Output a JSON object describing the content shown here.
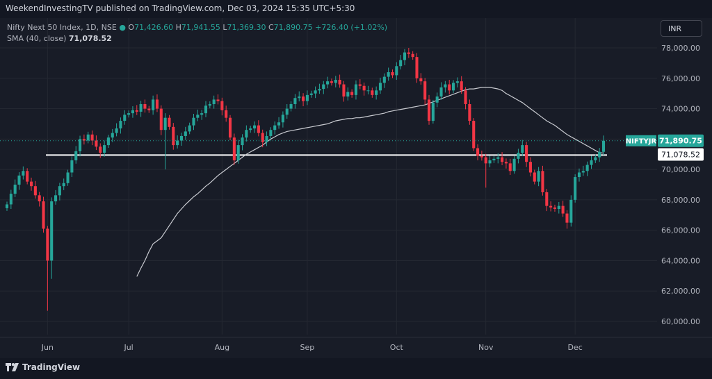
{
  "header": {
    "published_text": "WeekendInvestingTV published on TradingView.com, Dec 03, 2024 15:35 UTC+5:30"
  },
  "legend": {
    "symbol": "Nifty Next 50 Index, 1D, NSE",
    "o_label": "O",
    "o_value": "71,426.60",
    "h_label": "H",
    "h_value": "71,941.55",
    "l_label": "L",
    "l_value": "71,369.30",
    "c_label": "C",
    "c_value": "71,890.75",
    "change": "+726.40 (+1.02%)",
    "sma_label": "SMA (40, close)",
    "sma_value": "71,078.52"
  },
  "currency_button": "INR",
  "footer": {
    "brand": "TradingView"
  },
  "colors": {
    "up": "#26a69a",
    "down": "#f23645",
    "sma": "#c9cbd1",
    "hline": "#ffffff",
    "grid": "#242832",
    "axis_text": "#b2b5be"
  },
  "chart_data": {
    "type": "candlestick",
    "symbol": "NIFTYJR",
    "interval": "1D",
    "yaxis_ticks": [
      "60,000.00",
      "62,000.00",
      "64,000.00",
      "66,000.00",
      "68,000.00",
      "70,000.00",
      "72,000.00",
      "74,000.00",
      "76,000.00",
      "78,000.00"
    ],
    "ylim": [
      59500,
      79000
    ],
    "xaxis_ticks": [
      {
        "label": "Jun",
        "date": "2024-06-03"
      },
      {
        "label": "Jul",
        "date": "2024-07-01"
      },
      {
        "label": "Aug",
        "date": "2024-08-01"
      },
      {
        "label": "Sep",
        "date": "2024-09-02"
      },
      {
        "label": "Oct",
        "date": "2024-10-01"
      },
      {
        "label": "Nov",
        "date": "2024-11-01"
      },
      {
        "label": "Dec",
        "date": "2024-12-02"
      }
    ],
    "last_price_label": "71,890.75",
    "sma_price_label": "71,078.52",
    "horizontal_line": 70950,
    "closes": [
      67700,
      68400,
      69000,
      69600,
      69900,
      69200,
      68900,
      68300,
      67900,
      66100,
      64000,
      67900,
      68300,
      68900,
      69100,
      69800,
      70600,
      71200,
      72000,
      71900,
      72300,
      71900,
      71500,
      71100,
      71600,
      72100,
      72400,
      72700,
      73200,
      73600,
      73700,
      73900,
      73800,
      74300,
      74000,
      73900,
      74600,
      74000,
      72600,
      73400,
      72800,
      71600,
      71900,
      72200,
      72500,
      72900,
      73400,
      73600,
      73700,
      74200,
      74300,
      74600,
      74500,
      73900,
      73400,
      72100,
      70600,
      71600,
      72100,
      72600,
      72700,
      72900,
      72400,
      71800,
      72200,
      72600,
      72900,
      73100,
      73600,
      74000,
      74300,
      74700,
      74800,
      74500,
      74900,
      75000,
      75200,
      75300,
      75600,
      75800,
      75700,
      75900,
      75600,
      74800,
      75100,
      74900,
      75600,
      75500,
      75200,
      75200,
      74900,
      75200,
      75700,
      76100,
      76400,
      76200,
      76800,
      77200,
      77700,
      77600,
      77400,
      76000,
      75800,
      74600,
      73200,
      74400,
      74800,
      75400,
      75600,
      75200,
      75700,
      75800,
      75200,
      74300,
      73200,
      71400,
      70900,
      70800,
      70400,
      70600,
      70700,
      70800,
      70500,
      70400,
      69900,
      70700,
      71100,
      71600,
      70500,
      69800,
      69200,
      69900,
      68500,
      67600,
      67500,
      67400,
      67600,
      67100,
      66500,
      68000,
      69500,
      69800,
      69900,
      70300,
      70600,
      70800,
      71160,
      71890
    ],
    "sma": [
      62950,
      63500,
      64000,
      64600,
      65100,
      65300,
      65500,
      65900,
      66300,
      66700,
      67100,
      67400,
      67700,
      67950,
      68200,
      68400,
      68650,
      68900,
      69100,
      69350,
      69600,
      69800,
      70000,
      70200,
      70400,
      70600,
      70800,
      71000,
      71150,
      71300,
      71450,
      71600,
      71800,
      72000,
      72150,
      72300,
      72400,
      72500,
      72550,
      72600,
      72650,
      72700,
      72750,
      72800,
      72850,
      72900,
      72950,
      73000,
      73100,
      73200,
      73250,
      73300,
      73350,
      73350,
      73400,
      73400,
      73450,
      73500,
      73550,
      73600,
      73650,
      73700,
      73800,
      73850,
      73900,
      73950,
      74000,
      74050,
      74100,
      74150,
      74200,
      74250,
      74350,
      74450,
      74550,
      74650,
      74750,
      74850,
      74950,
      75050,
      75150,
      75250,
      75300,
      75300,
      75350,
      75400,
      75400,
      75400,
      75350,
      75300,
      75200,
      75000,
      74850,
      74700,
      74550,
      74400,
      74200,
      74000,
      73800,
      73600,
      73400,
      73200,
      73050,
      72900,
      72700,
      72500,
      72300,
      72150,
      72000,
      71850,
      71700,
      71550,
      71400,
      71250,
      71100,
      71080
    ]
  }
}
